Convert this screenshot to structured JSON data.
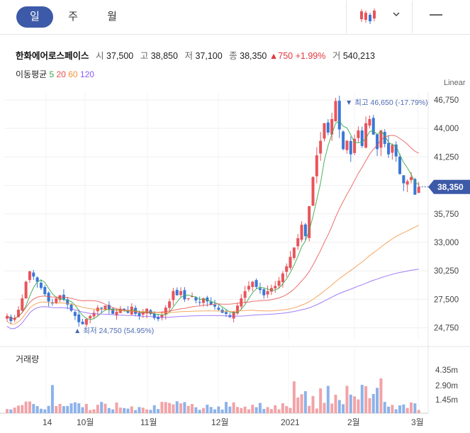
{
  "tabs": [
    {
      "label": "일",
      "active": true
    },
    {
      "label": "주",
      "active": false
    },
    {
      "label": "월",
      "active": false
    }
  ],
  "chart_type_icon": "candlestick-icon",
  "stock": {
    "name": "한화에어로스페이스",
    "open_label": "시",
    "open": "37,500",
    "high_label": "고",
    "high": "38,850",
    "low_label": "저",
    "low": "37,100",
    "close_label": "종",
    "close": "38,350",
    "change_symbol": "▲",
    "change": "750",
    "change_pct": "+1.99%",
    "volume_label": "거",
    "volume": "540,213"
  },
  "ma": {
    "label": "이동평균",
    "periods": [
      {
        "text": "5",
        "color": "#3aa84a"
      },
      {
        "text": "20",
        "color": "#e94b4b"
      },
      {
        "text": "60",
        "color": "#f0913a"
      },
      {
        "text": "120",
        "color": "#8b5cf6"
      }
    ]
  },
  "scale_label": "Linear",
  "price_axis": [
    "46,750",
    "44,000",
    "41,250",
    "38,500",
    "35,750",
    "33,000",
    "30,250",
    "27,500",
    "24,750"
  ],
  "current_price_label": "38,350",
  "high_marker": "▼ 최고 46,650 (-17.79%)",
  "low_marker": "▲ 최저 24,750 (54.95%)",
  "volume_title": "거래량",
  "volume_axis": [
    "4.35m",
    "2.90m",
    "1.45m"
  ],
  "x_labels": [
    "14",
    "10월",
    "11월",
    "12월",
    "2021",
    "2월",
    "3월"
  ],
  "colors": {
    "up": "#e9545a",
    "down": "#3a77d6",
    "accent": "#3d5aa8"
  },
  "chart_data": {
    "type": "candlestick",
    "ylim": [
      23500,
      48000
    ],
    "series_desc": "daily OHLC, approx",
    "closes": [
      25900,
      25400,
      25700,
      26500,
      27600,
      29200,
      30200,
      29700,
      29200,
      28600,
      28000,
      27300,
      27100,
      27600,
      27900,
      27500,
      27000,
      26400,
      25900,
      25300,
      25100,
      25600,
      25900,
      26200,
      26700,
      26600,
      26900,
      26500,
      26100,
      26300,
      26600,
      26500,
      26200,
      26800,
      26100,
      25900,
      26200,
      26600,
      26100,
      25700,
      25600,
      26000,
      26700,
      27300,
      28300,
      27900,
      28300,
      27500,
      27600,
      27800,
      27400,
      27200,
      27600,
      27300,
      27000,
      26800,
      26500,
      26200,
      26100,
      25800,
      26300,
      26900,
      27600,
      28300,
      28800,
      29200,
      28700,
      28400,
      27900,
      28300,
      28600,
      28800,
      29300,
      30000,
      30700,
      31600,
      32500,
      33400,
      34700,
      33600,
      36500,
      39300,
      41400,
      42800,
      44500,
      43600,
      44900,
      46650,
      43900,
      42000,
      42800,
      41500,
      43000,
      43800,
      42300,
      44500,
      44900,
      43400,
      42000,
      43800,
      42500,
      41500,
      42400,
      41300,
      39600,
      38700,
      38900,
      39300,
      37600,
      38350
    ],
    "ma_periods": [
      5,
      20,
      60,
      120
    ],
    "volume_max_m": 4.35
  }
}
